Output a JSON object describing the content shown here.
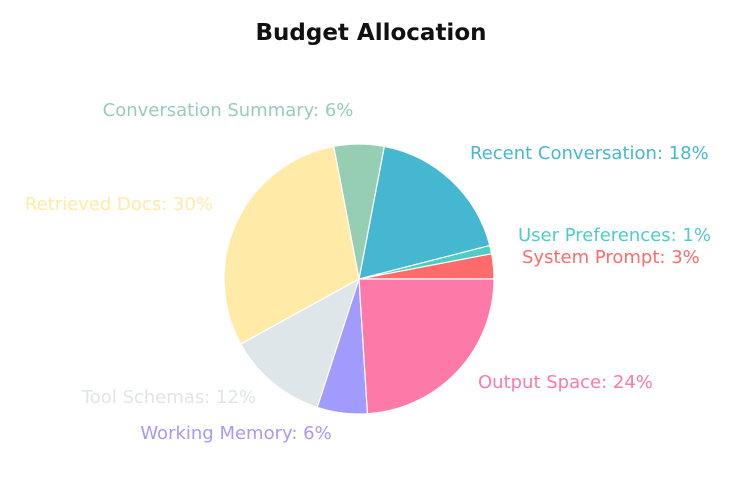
{
  "chart_data": {
    "type": "pie",
    "title": "Budget Allocation",
    "slices": [
      {
        "name": "System Prompt",
        "value": 3,
        "color": "#FF6B6B",
        "label": "System Prompt: 3%"
      },
      {
        "name": "User Preferences",
        "value": 1,
        "color": "#4ECDC4",
        "label": "User Preferences: 1%"
      },
      {
        "name": "Recent Conversation",
        "value": 18,
        "color": "#45B7D1",
        "label": "Recent Conversation: 18%"
      },
      {
        "name": "Conversation Summary",
        "value": 6,
        "color": "#96CEB4",
        "label": "Conversation Summary: 6%"
      },
      {
        "name": "Retrieved Docs",
        "value": 30,
        "color": "#FFEAA7",
        "label": "Retrieved Docs: 30%"
      },
      {
        "name": "Tool Schemas",
        "value": 12,
        "color": "#DFE6E9",
        "label": "Tool Schemas: 12%"
      },
      {
        "name": "Working Memory",
        "value": 6,
        "color": "#A29BFE",
        "label": "Working Memory: 6%"
      },
      {
        "name": "Output Space",
        "value": 24,
        "color": "#FD79A8",
        "label": "Output Space: 24%"
      }
    ]
  }
}
